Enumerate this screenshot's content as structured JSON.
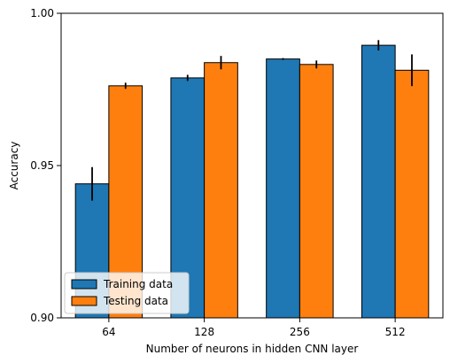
{
  "chart_data": {
    "type": "bar",
    "title": "",
    "xlabel": "Number of neurons in hidden CNN layer",
    "ylabel": "Accuracy",
    "categories": [
      "64",
      "128",
      "256",
      "512"
    ],
    "ylim": [
      0.9,
      1.0
    ],
    "yticks": [
      0.9,
      0.95,
      1.0
    ],
    "ytick_labels": [
      "0.90",
      "0.95",
      "1.00"
    ],
    "grid": false,
    "legend_position": "lower-left",
    "error_bars": true,
    "series": [
      {
        "name": "Training data",
        "color": "#1f77b4",
        "values": [
          0.944,
          0.9788,
          0.985,
          0.9895
        ],
        "errors": [
          0.0055,
          0.001,
          0.0003,
          0.0017
        ]
      },
      {
        "name": "Testing data",
        "color": "#ff7f0e",
        "values": [
          0.9762,
          0.9838,
          0.9832,
          0.9813
        ],
        "errors": [
          0.001,
          0.0022,
          0.0013,
          0.0052
        ]
      }
    ]
  }
}
